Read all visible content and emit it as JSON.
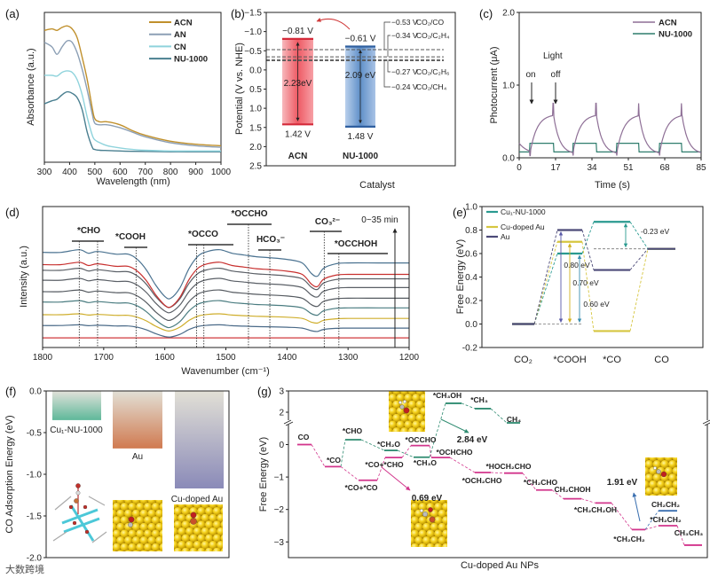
{
  "panel_labels": [
    "(a)",
    "(b)",
    "(c)",
    "(d)",
    "(e)",
    "(f)",
    "(g)"
  ],
  "watermark": "大数跨境",
  "chart_data": [
    {
      "type": "line",
      "xlabel": "Wavelength (nm)",
      "ylabel": "Absorbance (a.u.)",
      "xlim": [
        300,
        1000
      ],
      "ylim": [
        0,
        1
      ],
      "xticks": [
        "300",
        "400",
        "500",
        "600",
        "700",
        "800",
        "900",
        "1000"
      ],
      "x": [
        300,
        330,
        350,
        370,
        390,
        410,
        430,
        450,
        470,
        490,
        500,
        520,
        550,
        600,
        650,
        700,
        800,
        900,
        1000
      ],
      "series": [
        {
          "name": "ACN",
          "color": "#c0902c",
          "values": [
            0.88,
            0.89,
            0.88,
            0.9,
            0.91,
            0.89,
            0.83,
            0.7,
            0.55,
            0.36,
            0.29,
            0.27,
            0.27,
            0.25,
            0.21,
            0.18,
            0.14,
            0.12,
            0.11
          ]
        },
        {
          "name": "AN",
          "color": "#8c9fb5",
          "values": [
            0.8,
            0.77,
            0.72,
            0.77,
            0.81,
            0.8,
            0.73,
            0.62,
            0.48,
            0.32,
            0.26,
            0.25,
            0.25,
            0.23,
            0.2,
            0.17,
            0.13,
            0.11,
            0.1
          ]
        },
        {
          "name": "CN",
          "color": "#8fd3dc",
          "values": [
            0.58,
            0.58,
            0.575,
            0.6,
            0.61,
            0.6,
            0.55,
            0.45,
            0.3,
            0.18,
            0.15,
            0.13,
            0.11,
            0.095,
            0.085,
            0.08,
            0.075,
            0.075,
            0.075
          ]
        },
        {
          "name": "NU-1000",
          "color": "#4a7f90",
          "values": [
            0.39,
            0.41,
            0.42,
            0.45,
            0.47,
            0.46,
            0.43,
            0.35,
            0.2,
            0.1,
            0.085,
            0.08,
            0.078,
            0.075,
            0.073,
            0.072,
            0.07,
            0.07,
            0.07
          ]
        }
      ]
    },
    {
      "type": "bar",
      "xlabel": "Catalyst",
      "ylabel": "Potential (V vs. NHE)",
      "ylim": [
        -1.5,
        2.5
      ],
      "yticks": [
        "−1.5",
        "−1.0",
        "−0.5",
        "0.0",
        "0.5",
        "1.0",
        "1.5",
        "2.0",
        "2.5"
      ],
      "categories": [
        "ACN",
        "NU-1000"
      ],
      "colors": [
        "#ee5a64",
        "#5f8fc8"
      ],
      "cb": [
        -0.81,
        -0.61
      ],
      "vb": [
        1.42,
        1.48
      ],
      "cb_labels": [
        "−0.81 V",
        "−0.61 V"
      ],
      "vb_labels": [
        "1.42 V",
        "1.48 V"
      ],
      "gap_labels": [
        "2.23eV",
        "2.09 eV"
      ],
      "redox": [
        {
          "potential": -0.53,
          "value_label": "−0.53 V",
          "couple": "CO₂/CO"
        },
        {
          "potential": -0.34,
          "value_label": "−0.34 V",
          "couple": "CO₂/C₂H₄"
        },
        {
          "potential": -0.27,
          "value_label": "−0.27 V",
          "couple": "CO₂/C₂H₆"
        },
        {
          "potential": -0.24,
          "value_label": "−0.24 V",
          "couple": "CO₂/CH₄"
        }
      ]
    },
    {
      "type": "line",
      "xlabel": "Time (s)",
      "ylabel": "Photocurrent (μA)",
      "xlim": [
        0,
        85
      ],
      "ylim": [
        0,
        2
      ],
      "xticks": [
        "0",
        "17",
        "34",
        "51",
        "68",
        "85"
      ],
      "yticks": [
        "0.0",
        "1.0",
        "2.0"
      ],
      "light_on": [
        5,
        25,
        45.5,
        65.5
      ],
      "light_off": [
        16,
        36,
        56,
        76
      ],
      "annotation_light": "Light",
      "annotation_on": "on",
      "annotation_off": "off",
      "series": [
        {
          "name": "ACN",
          "color": "#8e6f96",
          "dark": 0.05,
          "start": 0.2,
          "plateau": 0.6,
          "spike": 0.75
        },
        {
          "name": "NU-1000",
          "color": "#2f7d6d",
          "dark": 0.08,
          "start": 0.08,
          "plateau": 0.2,
          "spike": 0.2
        }
      ]
    },
    {
      "type": "line",
      "xlabel": "Wavenumber (cm⁻¹)",
      "ylabel": "Intensity (a.u.)",
      "xlim": [
        1800,
        1200
      ],
      "ylim": [
        0,
        160
      ],
      "xticks": [
        "1800",
        "1700",
        "1600",
        "1500",
        "1400",
        "1300",
        "1200"
      ],
      "time_label": "0~35 min",
      "shape_wavenumber": [
        1800,
        1770,
        1740,
        1725,
        1710,
        1680,
        1660,
        1645,
        1630,
        1615,
        1600,
        1590,
        1575,
        1560,
        1545,
        1530,
        1510,
        1490,
        1470,
        1450,
        1430,
        1400,
        1375,
        1360,
        1350,
        1340,
        1320,
        1300,
        1250,
        1200
      ],
      "shape_intensity": [
        12,
        12,
        15,
        11,
        13,
        10,
        10,
        4,
        -8,
        -25,
        -38,
        -40,
        -28,
        -6,
        8,
        13,
        15,
        11,
        9,
        7,
        6,
        4,
        0,
        -12,
        -15,
        -6,
        -1,
        0,
        0,
        0
      ],
      "spectra": [
        {
          "offset": 11,
          "amplitude": 0,
          "color": "#d0383c"
        },
        {
          "offset": 22,
          "amplitude": 0.25,
          "color": "#4a6a88"
        },
        {
          "offset": 33,
          "amplitude": 0.35,
          "color": "#cfae2c"
        },
        {
          "offset": 45,
          "amplitude": 0.55,
          "color": "#4a7c80"
        },
        {
          "offset": 56,
          "amplitude": 0.62,
          "color": "#555a60"
        },
        {
          "offset": 68,
          "amplitude": 0.7,
          "color": "#5a5f66"
        },
        {
          "offset": 78,
          "amplitude": 0.8,
          "color": "#5a5f66"
        },
        {
          "offset": 83,
          "amplitude": 0.92,
          "color": "#c8302f"
        },
        {
          "offset": 96,
          "amplitude": 1.0,
          "color": "#4a7290"
        }
      ],
      "bands": [
        {
          "label": "*CHO",
          "color": "#2e8b57",
          "lines": [
            1740,
            1710
          ]
        },
        {
          "label": "*COOH",
          "color": "#9a3fa6",
          "lines": [
            1647
          ]
        },
        {
          "label": "*OCCO",
          "color": "#c0202e",
          "lines": [
            1548,
            1536
          ]
        },
        {
          "label": "*OCCHO",
          "color": "#d4a514",
          "lines": [
            1463
          ]
        },
        {
          "label": "HCO₃⁻",
          "color": "#222222",
          "lines": [
            1428
          ]
        },
        {
          "label": "CO₃²⁻",
          "color": "#3f7896",
          "lines": [
            1339
          ]
        },
        {
          "label": "*OCCHOH",
          "color": "#5f8a1c",
          "lines": [
            1315
          ]
        }
      ]
    },
    {
      "type": "line",
      "ylabel": "Free Energy (eV)",
      "ylim": [
        -0.2,
        1.0
      ],
      "yticks": [
        "-0.2",
        "0.0",
        "0.2",
        "0.4",
        "0.6",
        "0.8",
        "1.0"
      ],
      "categories": [
        "CO₂",
        "*COOH",
        "*CO",
        "CO"
      ],
      "series": [
        {
          "name": "Cu₁-NU-1000",
          "color": "#2a9a90",
          "values": [
            0,
            0.6,
            0.87,
            0.64
          ]
        },
        {
          "name": "Cu-doped Au",
          "color": "#d6c640",
          "values": [
            0,
            0.7,
            -0.06,
            0.64
          ]
        },
        {
          "name": "Au",
          "color": "#4c4a78",
          "values": [
            0,
            0.8,
            0.46,
            0.64
          ]
        }
      ],
      "gaps": [
        {
          "label": "0.80 eV",
          "color": "#5a5aa8",
          "from": 0,
          "to": 0.8
        },
        {
          "label": "0.70 eV",
          "color": "#d0b020",
          "from": 0,
          "to": 0.7
        },
        {
          "label": "0.60 eV",
          "color": "#3a8fb0",
          "from": 0,
          "to": 0.6
        },
        {
          "label": "-0.23 eV",
          "color": "#2a9a90",
          "from": 0.87,
          "to": 0.64
        }
      ]
    },
    {
      "type": "bar",
      "ylabel": "CO Adsorption Energy (eV)",
      "ylim": [
        -2.0,
        0.0
      ],
      "yticks": [
        "0.0",
        "-0.5",
        "-1.0",
        "-1.5",
        "-2.0"
      ],
      "categories": [
        "Cu₁-NU-1000",
        "Au",
        "Cu-doped Au"
      ],
      "values": [
        -0.35,
        -0.69,
        -1.17
      ],
      "colors": [
        "#5fb89a",
        "#d07a50",
        "#8a8ab8"
      ]
    },
    {
      "type": "line",
      "xlabel": "Cu-doped Au NPs",
      "ylabel": "Free Energy (eV)",
      "yticks": [
        "3",
        "2",
        "0",
        "−1",
        "−2",
        "−3"
      ],
      "colors": {
        "c2": "#d2358c",
        "c1": "#2e8b70",
        "ethylene": "#3a6fb0"
      },
      "levels": [
        {
          "label": "CO",
          "value": 0,
          "path": "c2"
        },
        {
          "label": "*CO",
          "value": -0.68,
          "path": "c2"
        },
        {
          "label": "*CO+*CO",
          "value": -1.1,
          "path": "c2"
        },
        {
          "label": "*CO+*CHO",
          "value": -0.4,
          "path": "c2"
        },
        {
          "label": "*OCCHO",
          "value": -0.03,
          "path": "c2"
        },
        {
          "label": "*OCHCHO",
          "value": -0.4,
          "path": "c2"
        },
        {
          "label": "*OCH₂CHO",
          "value": -0.86,
          "path": "c2"
        },
        {
          "label": "*HOCH₂CHO",
          "value": -0.88,
          "path": "c2"
        },
        {
          "label": "*CH₂CHO",
          "value": -1.4,
          "path": "c2"
        },
        {
          "label": "CH₂CHOH",
          "value": -1.67,
          "path": "c2"
        },
        {
          "label": "*CH₂CH₂OH",
          "value": -1.8,
          "path": "c2"
        },
        {
          "label": "*CH₂CH₂",
          "value": -2.62,
          "path": "c2"
        },
        {
          "label": "*CH₂CH₂",
          "value": -2.5,
          "path": "c2"
        },
        {
          "label": "CH₃CH₃",
          "value": -3.1,
          "path": "c2"
        },
        {
          "label": "CH₂CH₂",
          "value": -2.04,
          "path": "ethylene"
        },
        {
          "label": "*CHO",
          "value": 0.15,
          "path": "c1"
        },
        {
          "label": "*CH₂O",
          "value": -0.18,
          "path": "c1"
        },
        {
          "label": "*CH₃O",
          "value": -0.39,
          "path": "c1"
        },
        {
          "label": "*CH₃OH",
          "value": 2.42,
          "path": "c1"
        },
        {
          "label": "*CH₃",
          "value": 2.17,
          "path": "c1"
        },
        {
          "label": "CH₄",
          "value": 1.5,
          "path": "c1"
        }
      ],
      "barriers": [
        {
          "label": "2.84 eV",
          "path": "c1"
        },
        {
          "label": "0.69 eV",
          "path": "c2"
        },
        {
          "label": "1.91 eV",
          "path": "ethylene"
        }
      ]
    }
  ]
}
